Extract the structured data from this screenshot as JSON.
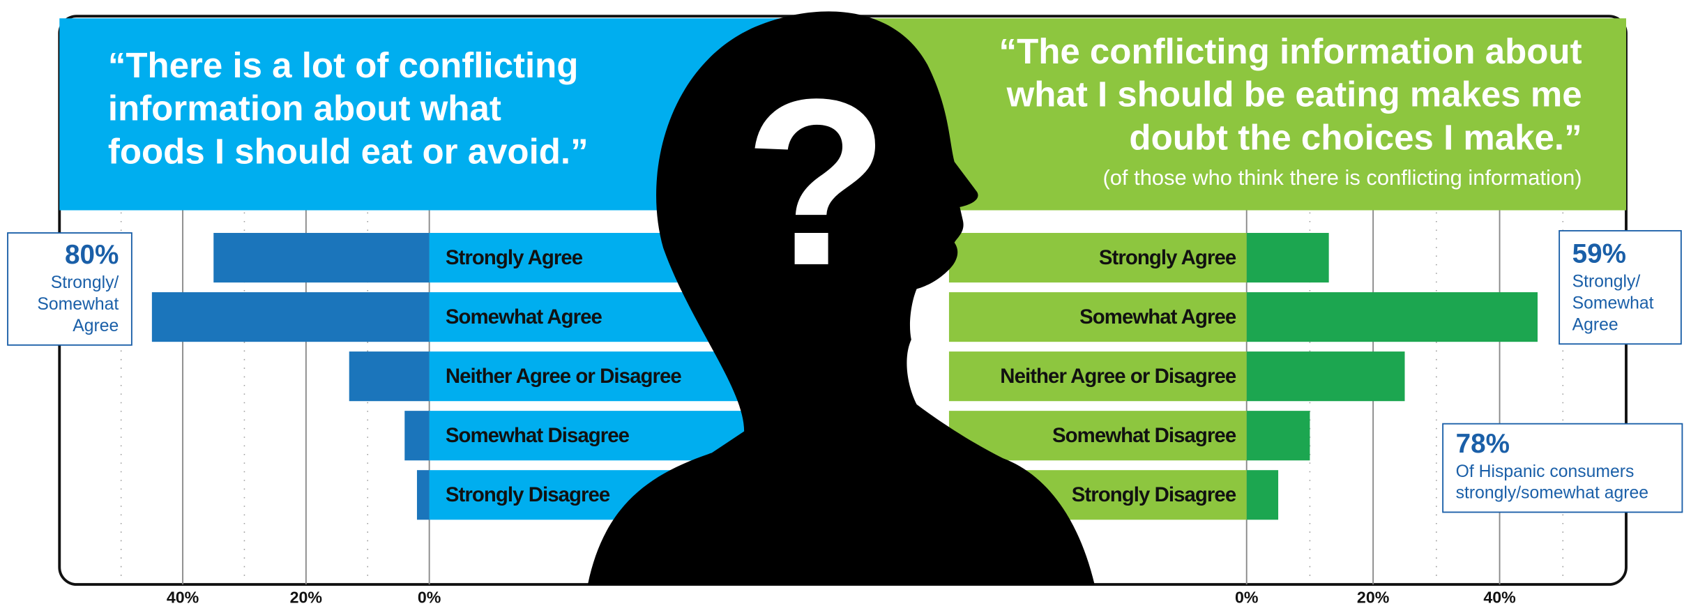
{
  "chart_data": [
    {
      "type": "bar",
      "orientation": "horizontal",
      "x_reversed": true,
      "title": [
        "“There is a lot of conflicting",
        "information about what",
        "foods I should eat or avoid.”"
      ],
      "header_color": "#00aeef",
      "band_color": "#00aeef",
      "categories": [
        "Strongly Agree",
        "Somewhat Agree",
        "Neither Agree or Disagree",
        "Somewhat Disagree",
        "Strongly Disagree"
      ],
      "series": [
        {
          "color": "#1b75bb",
          "values": [
            35,
            45,
            13,
            4,
            2
          ]
        }
      ],
      "xlim": [
        0,
        60
      ],
      "xticks": [
        {
          "value": 0,
          "label": "0%"
        },
        {
          "value": 20,
          "label": "20%"
        },
        {
          "value": 40,
          "label": "40%"
        }
      ],
      "minor_xticks": [
        10,
        30,
        50
      ],
      "annotations": [
        {
          "value": "80%",
          "text": [
            "Strongly/",
            "Somewhat",
            "Agree"
          ]
        }
      ]
    },
    {
      "type": "bar",
      "orientation": "horizontal",
      "x_reversed": false,
      "title": [
        "“The conflicting information about",
        "what I should be eating makes me",
        "doubt the choices I make.”"
      ],
      "subtitle": "(of those who think there is conflicting information)",
      "header_color": "#8dc63f",
      "band_color": "#8dc63f",
      "categories": [
        "Strongly Agree",
        "Somewhat Agree",
        "Neither Agree or Disagree",
        "Somewhat Disagree",
        "Strongly Disagree"
      ],
      "series": [
        {
          "color": "#1ca650",
          "values": [
            13,
            46,
            25,
            10,
            5
          ]
        }
      ],
      "xlim": [
        0,
        60
      ],
      "xticks": [
        {
          "value": 0,
          "label": "0%"
        },
        {
          "value": 20,
          "label": "20%"
        },
        {
          "value": 40,
          "label": "40%"
        }
      ],
      "minor_xticks": [
        10,
        30,
        50
      ],
      "annotations": [
        {
          "value": "59%",
          "text": [
            "Strongly/",
            "Somewhat",
            "Agree"
          ]
        },
        {
          "value": "78%",
          "text": [
            "Of Hispanic consumers",
            "strongly/somewhat agree"
          ]
        }
      ]
    }
  ],
  "icon_text": "?"
}
